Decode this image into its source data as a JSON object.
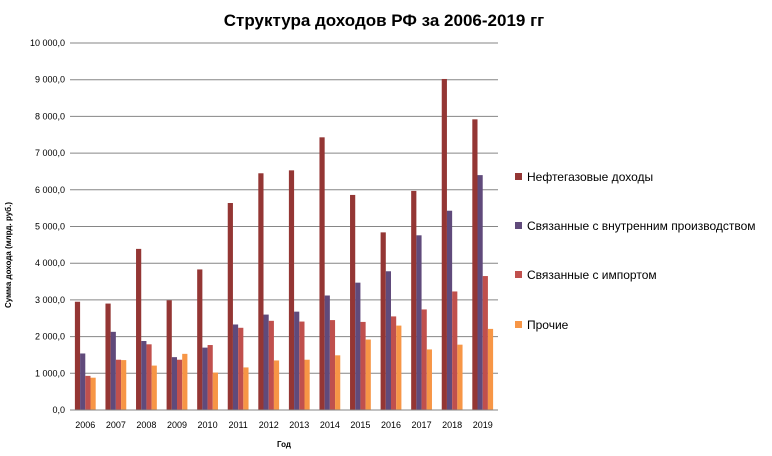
{
  "chart_data": {
    "type": "bar",
    "title": "Структура  доходов РФ за 2006-2019  гг",
    "xlabel": "Год",
    "ylabel": "Сумма дохода (млрд. руб.)",
    "ylim": [
      0,
      10000
    ],
    "y_ticks": [
      "0,0",
      "1 000,0",
      "2 000,0",
      "3 000,0",
      "4 000,0",
      "5 000,0",
      "6 000,0",
      "7 000,0",
      "8 000,0",
      "9 000,0",
      "10 000,0"
    ],
    "y_tick_values": [
      0,
      1000,
      2000,
      3000,
      4000,
      5000,
      6000,
      7000,
      8000,
      9000,
      10000
    ],
    "grid": true,
    "legend_position": "right",
    "categories": [
      "2006",
      "2007",
      "2008",
      "2009",
      "2010",
      "2011",
      "2012",
      "2013",
      "2014",
      "2015",
      "2016",
      "2017",
      "2018",
      "2019"
    ],
    "series": [
      {
        "name": "Нефтегазовые доходы",
        "color": "#943634",
        "values": [
          2950,
          2900,
          4390,
          2990,
          3830,
          5640,
          6450,
          6530,
          7430,
          5860,
          4840,
          5970,
          9020,
          7920
        ]
      },
      {
        "name": "Связанные с внутренним производством",
        "color": "#604a7b",
        "values": [
          1540,
          2130,
          1880,
          1440,
          1700,
          2330,
          2600,
          2680,
          3120,
          3470,
          3780,
          4760,
          5430,
          6400
        ]
      },
      {
        "name": "Связанные с импортом",
        "color": "#c0504d",
        "values": [
          930,
          1370,
          1790,
          1370,
          1770,
          2240,
          2430,
          2410,
          2450,
          2400,
          2550,
          2740,
          3230,
          3650
        ]
      },
      {
        "name": "Прочие",
        "color": "#f79646",
        "values": [
          880,
          1360,
          1210,
          1530,
          1020,
          1160,
          1350,
          1370,
          1490,
          1920,
          2300,
          1650,
          1780,
          2210
        ]
      }
    ]
  }
}
